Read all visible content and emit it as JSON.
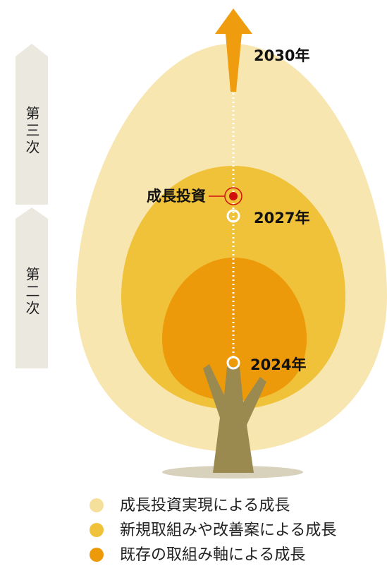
{
  "phases": [
    "第三次",
    "第二次"
  ],
  "years": [
    "2030年",
    "2027年",
    "2024年"
  ],
  "marker": "成長投資",
  "legend": [
    "成長投資実現による成長",
    "新規取組みや改善案による成長",
    "既存の取組み軸による成長"
  ]
}
